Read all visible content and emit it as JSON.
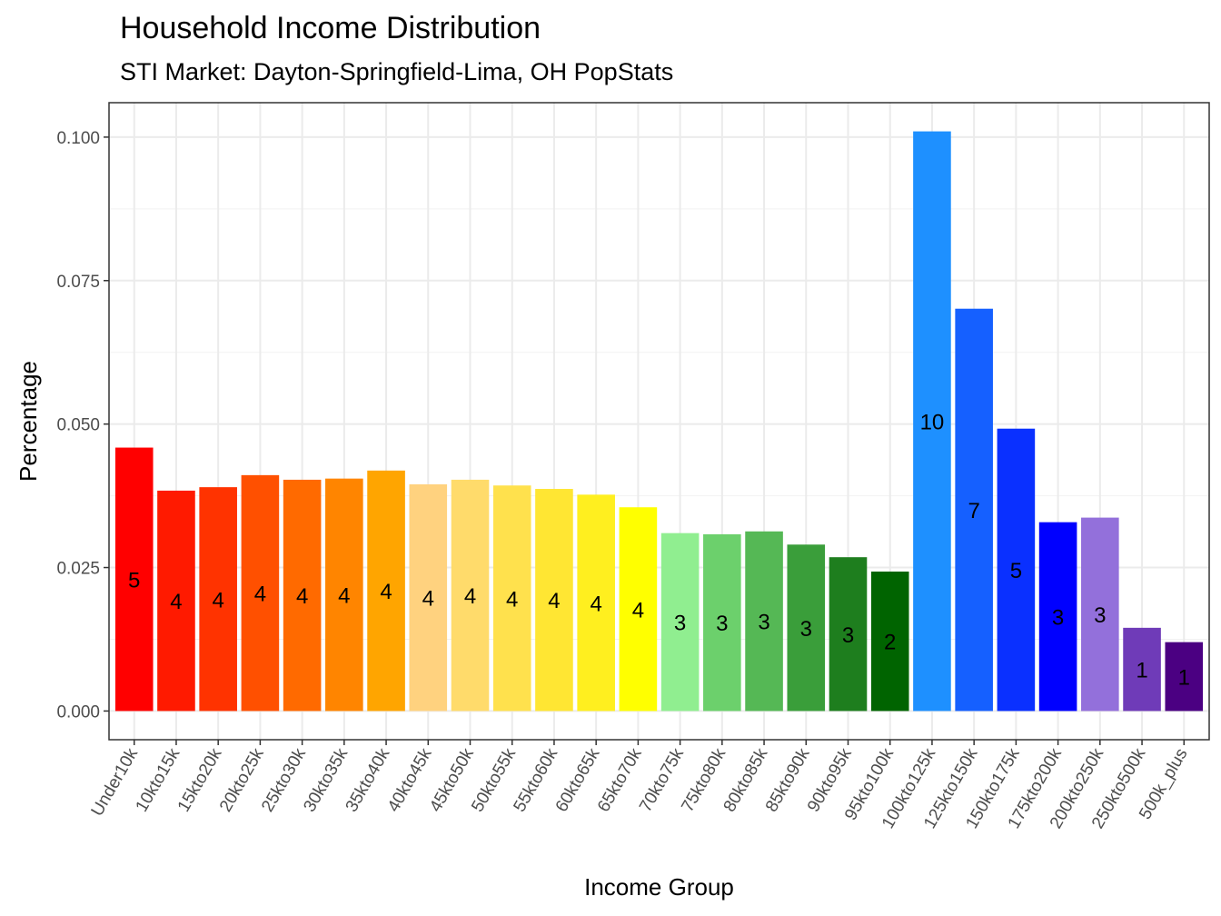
{
  "chart_data": {
    "type": "bar",
    "title": "Household Income Distribution",
    "subtitle": "STI Market: Dayton-Springfield-Lima, OH PopStats",
    "xlabel": "Income Group",
    "ylabel": "Percentage",
    "ylim": [
      0,
      0.105
    ],
    "yticks": [
      "0.000",
      "0.025",
      "0.050",
      "0.075",
      "0.100"
    ],
    "grid": true,
    "categories": [
      "Under10k",
      "10kto15k",
      "15kto20k",
      "20kto25k",
      "25kto30k",
      "30kto35k",
      "35kto40k",
      "40kto45k",
      "45kto50k",
      "50kto55k",
      "55kto60k",
      "60kto65k",
      "65kto70k",
      "70kto75k",
      "75kto80k",
      "80kto85k",
      "85kto90k",
      "90kto95k",
      "95kto100k",
      "100kto125k",
      "125kto150k",
      "150kto175k",
      "175kto200k",
      "200kto250k",
      "250kto500k",
      "500k_plus"
    ],
    "values": [
      0.0459,
      0.0384,
      0.039,
      0.0411,
      0.0403,
      0.0405,
      0.0419,
      0.0395,
      0.0403,
      0.0393,
      0.0387,
      0.0377,
      0.0355,
      0.031,
      0.0308,
      0.0313,
      0.029,
      0.0268,
      0.0243,
      0.101,
      0.0701,
      0.0492,
      0.0329,
      0.0337,
      0.0145,
      0.012
    ],
    "labels": [
      "5",
      "4",
      "4",
      "4",
      "4",
      "4",
      "4",
      "4",
      "4",
      "4",
      "4",
      "4",
      "4",
      "3",
      "3",
      "3",
      "3",
      "3",
      "2",
      "10",
      "7",
      "5",
      "3",
      "3",
      "1",
      "1"
    ],
    "colors": [
      "#FF0000",
      "#FF1A00",
      "#FF3300",
      "#FF5000",
      "#FF6A00",
      "#FF8500",
      "#FFA500",
      "#FFD27F",
      "#FFDB6B",
      "#FFE14D",
      "#FFE633",
      "#FFEF1F",
      "#FFFF00",
      "#90EE90",
      "#6CD06C",
      "#55B855",
      "#3A9E3A",
      "#1E7E1E",
      "#006400",
      "#1E90FF",
      "#1560FF",
      "#0A30FF",
      "#0000FF",
      "#9370DB",
      "#6F3BB8",
      "#4B0082"
    ]
  }
}
